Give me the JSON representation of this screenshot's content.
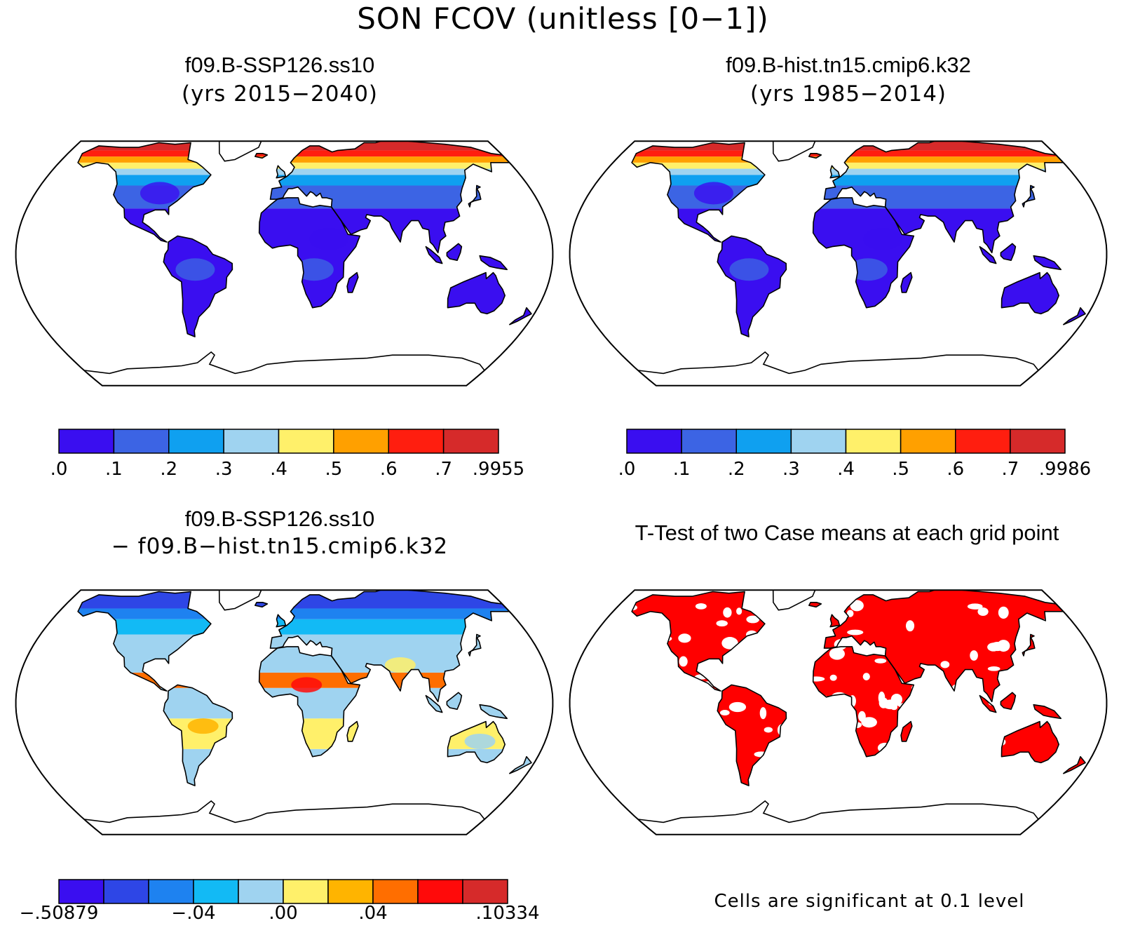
{
  "title": "SON FCOV (unitless [0−1])",
  "panels": {
    "top_left": {
      "case_name": "f09.B-SSP126.ss10",
      "years": "(yrs 2015−2040)",
      "palette": "absolute"
    },
    "top_right": {
      "case_name": "f09.B-hist.tn15.cmip6.k32",
      "years": "(yrs 1985−2014)",
      "palette": "absolute"
    },
    "bottom_left": {
      "case_name": "f09.B-SSP126.ss10",
      "minus_case": "− f09.B−hist.tn15.cmip6.k32",
      "palette": "difference"
    },
    "bottom_right": {
      "title": "T-Test of two Case means at each grid point",
      "note": "Cells are significant at 0.1 level",
      "significance_color": "#ff0000"
    }
  },
  "colorbars": {
    "top_left": {
      "colors": [
        "#3a0ef0",
        "#3c64e4",
        "#0fa0f0",
        "#9fd3f0",
        "#fff06a",
        "#ffa000",
        "#ff1e0f",
        "#d62a2a"
      ],
      "labels": [
        ".0",
        ".1",
        ".2",
        ".3",
        ".4",
        ".5",
        ".6",
        ".7",
        ".9955"
      ]
    },
    "top_right": {
      "colors": [
        "#3a0ef0",
        "#3c64e4",
        "#0fa0f0",
        "#9fd3f0",
        "#fff06a",
        "#ffa000",
        "#ff1e0f",
        "#d62a2a"
      ],
      "labels": [
        ".0",
        ".1",
        ".2",
        ".3",
        ".4",
        ".5",
        ".6",
        ".7",
        ".9986"
      ]
    },
    "bottom_left": {
      "colors": [
        "#3a0ef0",
        "#2e46e6",
        "#1e82f0",
        "#12baf5",
        "#9fd3f0",
        "#fff06a",
        "#ffb400",
        "#ff6e00",
        "#ff0a0a",
        "#d62a2a"
      ],
      "labels": [
        "−.50879",
        "−.04",
        ".00",
        ".04",
        ".10334"
      ],
      "label_positions": [
        0,
        0.3,
        0.5,
        0.7,
        1.0
      ]
    }
  }
}
